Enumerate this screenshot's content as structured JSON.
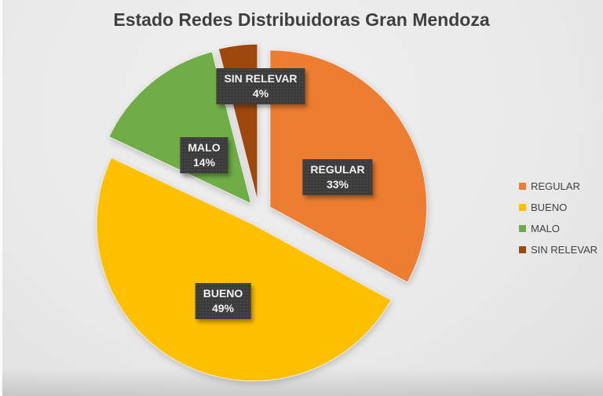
{
  "chart_data": {
    "type": "pie",
    "title": "Estado Redes Distribuidoras Gran Mendoza",
    "slices": [
      {
        "name": "REGULAR",
        "value": 33,
        "pct_label": "33%",
        "color": "#ED7D31"
      },
      {
        "name": "BUENO",
        "value": 49,
        "pct_label": "49%",
        "color": "#FFC000"
      },
      {
        "name": "MALO",
        "value": 14,
        "pct_label": "14%",
        "color": "#70AD47"
      },
      {
        "name": "SIN RELEVAR",
        "value": 4,
        "pct_label": "4%",
        "color": "#9E480E"
      }
    ],
    "start_angle_deg": 0,
    "direction": "clockwise",
    "explosion": "all-slices-exploded",
    "data_labels": "category-name-and-percentage-in-dark-boxes",
    "legend_position": "right",
    "title_color": "#3F3F3F",
    "label_box_color": "#3B3B3B",
    "label_text_color": "#F2F2F2",
    "legend_text_color": "#404040",
    "background_color": "#EAEAEA"
  }
}
